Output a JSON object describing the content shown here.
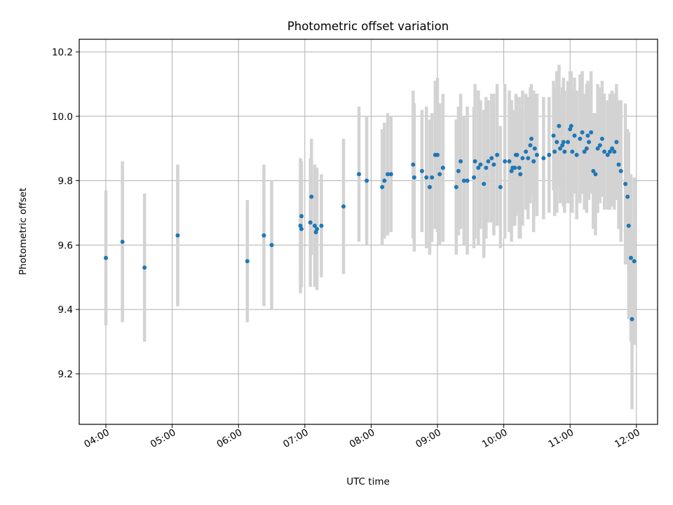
{
  "chart_data": {
    "type": "scatter",
    "title": "Photometric offset variation",
    "xlabel": "UTC time",
    "ylabel": "Photometric offset",
    "x_ticks": [
      "04:00",
      "05:00",
      "06:00",
      "07:00",
      "08:00",
      "09:00",
      "10:00",
      "11:00",
      "12:00"
    ],
    "y_ticks": [
      "9.2",
      "9.4",
      "9.6",
      "9.8",
      "10.0",
      "10.2"
    ],
    "ylim": [
      9.05,
      10.24
    ],
    "xlim_hours": [
      3.6,
      12.3
    ],
    "grid": true,
    "point_color": "#1f77b4",
    "errorbar_color": "#d3d3d3",
    "series": [
      {
        "time": [
          "04:00",
          "04:15",
          "04:35",
          "05:05",
          "06:08",
          "06:23",
          "06:30",
          "06:56",
          "06:57",
          "06:57",
          "07:05",
          "07:06",
          "07:09",
          "07:10",
          "07:11",
          "07:15",
          "07:35",
          "07:49",
          "07:56",
          "08:10",
          "08:12",
          "08:15",
          "08:18",
          "08:38",
          "08:39",
          "08:46",
          "08:50",
          "08:53",
          "08:55",
          "08:58",
          "09:00",
          "09:02",
          "09:05",
          "09:17",
          "09:19",
          "09:21",
          "09:24",
          "09:27",
          "09:33",
          "09:34",
          "09:37",
          "09:39",
          "09:42",
          "09:44",
          "09:46",
          "09:49",
          "09:51",
          "09:54",
          "09:57",
          "10:01",
          "10:05",
          "10:07",
          "10:08",
          "10:10",
          "10:11",
          "10:12",
          "10:14",
          "10:15",
          "10:17",
          "10:20",
          "10:22",
          "10:24",
          "10:25",
          "10:27",
          "10:28",
          "10:30",
          "10:36",
          "10:41",
          "10:45",
          "10:46",
          "10:48",
          "10:50",
          "10:51",
          "10:53",
          "10:54",
          "10:55",
          "10:58",
          "11:00",
          "11:01",
          "11:02",
          "11:04",
          "11:06",
          "11:09",
          "11:11",
          "11:13",
          "11:15",
          "11:16",
          "11:17",
          "11:19",
          "11:21",
          "11:23",
          "11:25",
          "11:27",
          "11:29",
          "11:31",
          "11:34",
          "11:36",
          "11:38",
          "11:40",
          "11:42",
          "11:44",
          "11:46",
          "11:50",
          "11:52",
          "11:53",
          "11:55",
          "11:56",
          "11:58"
        ],
        "y": [
          9.56,
          9.61,
          9.53,
          9.63,
          9.55,
          9.63,
          9.6,
          9.66,
          9.69,
          9.65,
          9.67,
          9.75,
          9.66,
          9.64,
          9.65,
          9.66,
          9.72,
          9.82,
          9.8,
          9.78,
          9.8,
          9.82,
          9.82,
          9.85,
          9.81,
          9.83,
          9.81,
          9.78,
          9.81,
          9.88,
          9.88,
          9.82,
          9.84,
          9.78,
          9.83,
          9.86,
          9.8,
          9.8,
          9.81,
          9.86,
          9.84,
          9.85,
          9.79,
          9.84,
          9.86,
          9.87,
          9.85,
          9.88,
          9.78,
          9.86,
          9.86,
          9.83,
          9.84,
          9.84,
          9.88,
          9.88,
          9.84,
          9.82,
          9.87,
          9.89,
          9.87,
          9.91,
          9.93,
          9.86,
          9.9,
          9.88,
          9.87,
          9.88,
          9.94,
          9.89,
          9.92,
          9.97,
          9.9,
          9.91,
          9.92,
          9.89,
          9.92,
          9.96,
          9.97,
          9.89,
          9.94,
          9.88,
          9.93,
          9.95,
          9.89,
          9.9,
          9.94,
          9.92,
          9.95,
          9.83,
          9.82,
          9.9,
          9.91,
          9.93,
          9.89,
          9.88,
          9.89,
          9.9,
          9.89,
          9.92,
          9.85,
          9.83,
          9.79,
          9.75,
          9.66,
          9.56,
          9.37,
          9.55
        ],
        "yerr": [
          0.21,
          0.25,
          0.23,
          0.22,
          0.19,
          0.22,
          0.2,
          0.21,
          0.17,
          0.18,
          0.2,
          0.18,
          0.19,
          0.17,
          0.19,
          0.16,
          0.21,
          0.21,
          0.2,
          0.18,
          0.18,
          0.19,
          0.18,
          0.23,
          0.23,
          0.19,
          0.22,
          0.21,
          0.2,
          0.23,
          0.24,
          0.22,
          0.23,
          0.21,
          0.2,
          0.21,
          0.2,
          0.23,
          0.22,
          0.24,
          0.24,
          0.2,
          0.23,
          0.22,
          0.19,
          0.2,
          0.22,
          0.22,
          0.19,
          0.24,
          0.22,
          0.22,
          0.18,
          0.18,
          0.19,
          0.18,
          0.22,
          0.2,
          0.21,
          0.18,
          0.19,
          0.18,
          0.17,
          0.22,
          0.17,
          0.19,
          0.19,
          0.18,
          0.17,
          0.2,
          0.22,
          0.19,
          0.17,
          0.18,
          0.2,
          0.19,
          0.19,
          0.18,
          0.17,
          0.19,
          0.18,
          0.2,
          0.2,
          0.19,
          0.18,
          0.2,
          0.17,
          0.18,
          0.19,
          0.18,
          0.19,
          0.2,
          0.18,
          0.18,
          0.18,
          0.17,
          0.18,
          0.18,
          0.18,
          0.18,
          0.2,
          0.22,
          0.25,
          0.21,
          0.29,
          0.26,
          0.28,
          0.26
        ]
      }
    ]
  }
}
